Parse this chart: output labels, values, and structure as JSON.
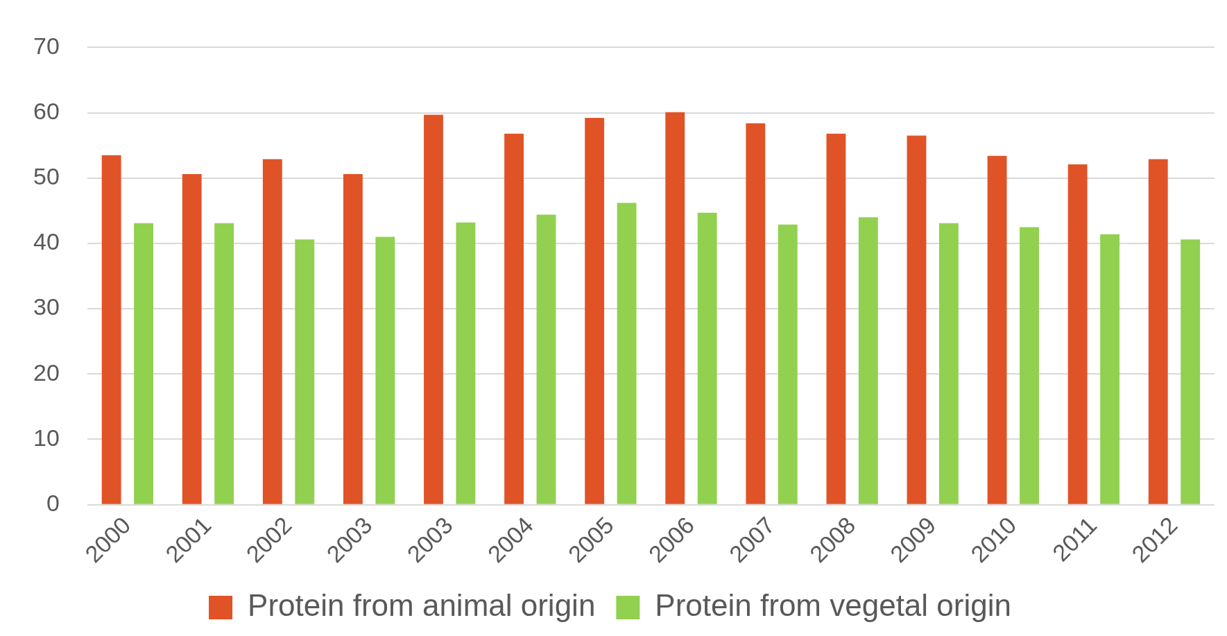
{
  "chart_data": {
    "type": "bar",
    "categories": [
      "2000",
      "2001",
      "2002",
      "2003",
      "2003",
      "2004",
      "2005",
      "2006",
      "2007",
      "2008",
      "2009",
      "2010",
      "2011",
      "2012"
    ],
    "series": [
      {
        "name": "Protein from animal origin",
        "color": "#e05327",
        "values": [
          53.5,
          50.6,
          52.9,
          50.6,
          59.7,
          56.8,
          59.2,
          60.1,
          58.4,
          56.8,
          56.5,
          53.4,
          52.1,
          52.9
        ]
      },
      {
        "name": "Protein from vegetal origin",
        "color": "#92d050",
        "values": [
          43.1,
          43.1,
          40.6,
          41.0,
          43.2,
          44.4,
          46.2,
          44.7,
          42.9,
          44.0,
          43.1,
          42.5,
          41.4,
          40.6
        ]
      }
    ],
    "ylim": [
      0,
      70
    ],
    "yticks": [
      0,
      10,
      20,
      30,
      40,
      50,
      60,
      70
    ],
    "grid": "y",
    "legend": "bottom"
  }
}
